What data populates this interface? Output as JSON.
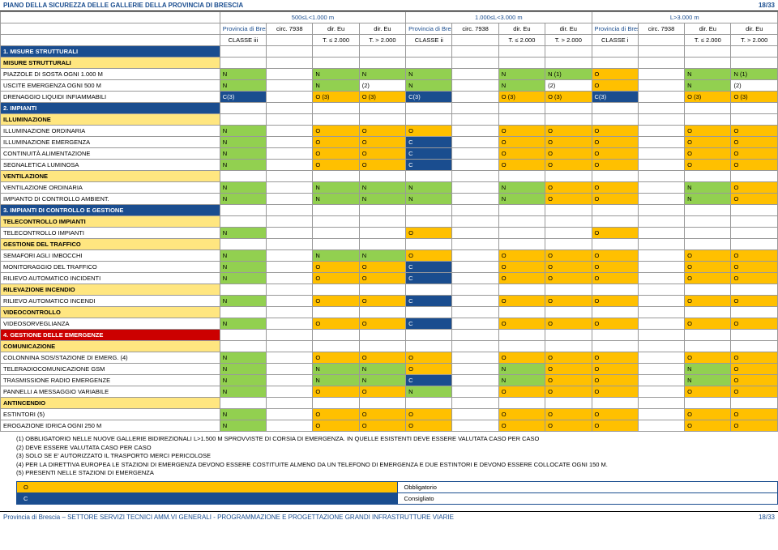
{
  "header": {
    "title": "PIANO DELLA SICUREZZA DELLE GALLERIE DELLA PROVINCIA DI BRESCIA",
    "page": "18/33"
  },
  "length_groups": [
    "500≤L<1.000 m",
    "1.000≤L<3.000 m",
    "L>3.000 m"
  ],
  "col_group_label": "Provincia di Brescia",
  "col_sub": [
    "circ. 7938",
    "dir. Eu",
    "dir. Eu"
  ],
  "classe_labels": [
    "CLASSE iii",
    "T. ≤ 2.000",
    "T. > 2.000",
    "CLASSE ii",
    "T. ≤ 2.000",
    "T. > 2.000",
    "CLASSE i",
    "T. ≤ 2.000",
    "T. > 2.000"
  ],
  "sections": [
    {
      "style": "blue",
      "label": "1. MISURE STRUTTURALI"
    },
    {
      "style": "yellow",
      "label": "MISURE STRUTTURALI"
    }
  ],
  "rows": [
    {
      "label": "PIAZZOLE DI SOSTA OGNI 1.000 M",
      "cells": [
        "N",
        "",
        "N",
        "N",
        "N",
        "",
        "N",
        "N (1)",
        "O",
        "",
        "N",
        "N (1)"
      ],
      "colors": [
        "g",
        "",
        "g",
        "g",
        "g",
        "",
        "g",
        "g",
        "o",
        "",
        "g",
        "g"
      ]
    },
    {
      "label": "USCITE EMERGENZA OGNI 500 M",
      "cells": [
        "N",
        "",
        "N",
        "(2)",
        "N",
        "",
        "N",
        "(2)",
        "O",
        "",
        "N",
        "(2)"
      ],
      "colors": [
        "g",
        "",
        "g",
        "",
        "g",
        "",
        "g",
        "",
        "o",
        "",
        "g",
        ""
      ]
    },
    {
      "label": "DRENAGGIO LIQUIDI INFIAMMABILI",
      "cells": [
        "C(3)",
        "",
        "O (3)",
        "O (3)",
        "C(3)",
        "",
        "O (3)",
        "O (3)",
        "C(3)",
        "",
        "O (3)",
        "O (3)"
      ],
      "colors": [
        "n",
        "",
        "o",
        "o",
        "n",
        "",
        "o",
        "o",
        "n",
        "",
        "o",
        "o"
      ]
    }
  ],
  "sections2": [
    {
      "style": "blue",
      "label": "2. IMPIANTI"
    },
    {
      "style": "yellow",
      "label": "ILLUMINAZIONE"
    }
  ],
  "rows2": [
    {
      "label": "ILLUMINAZIONE ORDINARIA",
      "cells": [
        "N",
        "",
        "O",
        "O",
        "O",
        "",
        "O",
        "O",
        "O",
        "",
        "O",
        "O"
      ],
      "colors": [
        "g",
        "",
        "o",
        "o",
        "o",
        "",
        "o",
        "o",
        "o",
        "",
        "o",
        "o"
      ]
    },
    {
      "label": "ILLUMINAZIONE EMERGENZA",
      "cells": [
        "N",
        "",
        "O",
        "O",
        "C",
        "",
        "O",
        "O",
        "O",
        "",
        "O",
        "O"
      ],
      "colors": [
        "g",
        "",
        "o",
        "o",
        "n",
        "",
        "o",
        "o",
        "o",
        "",
        "o",
        "o"
      ]
    },
    {
      "label": "CONTINUITÀ ALIMENTAZIONE",
      "cells": [
        "N",
        "",
        "O",
        "O",
        "C",
        "",
        "O",
        "O",
        "O",
        "",
        "O",
        "O"
      ],
      "colors": [
        "g",
        "",
        "o",
        "o",
        "n",
        "",
        "o",
        "o",
        "o",
        "",
        "o",
        "o"
      ]
    },
    {
      "label": "SEGNALETICA LUMINOSA",
      "cells": [
        "N",
        "",
        "O",
        "O",
        "C",
        "",
        "O",
        "O",
        "O",
        "",
        "O",
        "O"
      ],
      "colors": [
        "g",
        "",
        "o",
        "o",
        "n",
        "",
        "o",
        "o",
        "o",
        "",
        "o",
        "o"
      ]
    }
  ],
  "sections3": [
    {
      "style": "yellow",
      "label": "VENTILAZIONE"
    }
  ],
  "rows3": [
    {
      "label": "VENTILAZIONE ORDINARIA",
      "cells": [
        "N",
        "",
        "N",
        "N",
        "N",
        "",
        "N",
        "O",
        "O",
        "",
        "N",
        "O"
      ],
      "colors": [
        "g",
        "",
        "g",
        "g",
        "g",
        "",
        "g",
        "o",
        "o",
        "",
        "g",
        "o"
      ]
    },
    {
      "label": "IMPIANTO DI CONTROLLO AMBIENT.",
      "cells": [
        "N",
        "",
        "N",
        "N",
        "N",
        "",
        "N",
        "O",
        "O",
        "",
        "N",
        "O"
      ],
      "colors": [
        "g",
        "",
        "g",
        "g",
        "g",
        "",
        "g",
        "o",
        "o",
        "",
        "g",
        "o"
      ]
    }
  ],
  "sections4": [
    {
      "style": "blue",
      "label": "3. IMPIANTI DI CONTROLLO E GESTIONE"
    },
    {
      "style": "yellow",
      "label": "TELECONTROLLO IMPIANTI"
    }
  ],
  "rows4": [
    {
      "label": "TELECONTROLLO IMPIANTI",
      "cells": [
        "N",
        "",
        "",
        "",
        "O",
        "",
        "",
        "",
        "O",
        "",
        "",
        ""
      ],
      "colors": [
        "g",
        "",
        "",
        "",
        "o",
        "",
        "",
        "",
        "o",
        "",
        "",
        ""
      ]
    }
  ],
  "sections5": [
    {
      "style": "yellow",
      "label": "GESTIONE DEL TRAFFICO"
    }
  ],
  "rows5": [
    {
      "label": "SEMAFORI AGLI IMBOCCHI",
      "cells": [
        "N",
        "",
        "N",
        "N",
        "O",
        "",
        "O",
        "O",
        "O",
        "",
        "O",
        "O"
      ],
      "colors": [
        "g",
        "",
        "g",
        "g",
        "o",
        "",
        "o",
        "o",
        "o",
        "",
        "o",
        "o"
      ]
    },
    {
      "label": "MONITORAGGIO DEL TRAFFICO",
      "cells": [
        "N",
        "",
        "O",
        "O",
        "C",
        "",
        "O",
        "O",
        "O",
        "",
        "O",
        "O"
      ],
      "colors": [
        "g",
        "",
        "o",
        "o",
        "n",
        "",
        "o",
        "o",
        "o",
        "",
        "o",
        "o"
      ]
    },
    {
      "label": "RILIEVO AUTOMATICO INCIDENTI",
      "cells": [
        "N",
        "",
        "O",
        "O",
        "C",
        "",
        "O",
        "O",
        "O",
        "",
        "O",
        "O"
      ],
      "colors": [
        "g",
        "",
        "o",
        "o",
        "n",
        "",
        "o",
        "o",
        "o",
        "",
        "o",
        "o"
      ]
    }
  ],
  "sections6": [
    {
      "style": "yellow",
      "label": "RILEVAZIONE INCENDIO"
    }
  ],
  "rows6": [
    {
      "label": "RILIEVO AUTOMATICO INCENDI",
      "cells": [
        "N",
        "",
        "O",
        "O",
        "C",
        "",
        "O",
        "O",
        "O",
        "",
        "O",
        "O"
      ],
      "colors": [
        "g",
        "",
        "o",
        "o",
        "n",
        "",
        "o",
        "o",
        "o",
        "",
        "o",
        "o"
      ]
    }
  ],
  "sections7": [
    {
      "style": "yellow",
      "label": "VIDEOCONTROLLO"
    }
  ],
  "rows7": [
    {
      "label": "VIDEOSORVEGLIANZA",
      "cells": [
        "N",
        "",
        "O",
        "O",
        "C",
        "",
        "O",
        "O",
        "O",
        "",
        "O",
        "O"
      ],
      "colors": [
        "g",
        "",
        "o",
        "o",
        "n",
        "",
        "o",
        "o",
        "o",
        "",
        "o",
        "o"
      ]
    }
  ],
  "sections8": [
    {
      "style": "red",
      "label": "4. GESTIONE DELLE EMERGENZE"
    },
    {
      "style": "yellow",
      "label": "COMUNICAZIONE"
    }
  ],
  "rows8": [
    {
      "label": "COLONNINA SOS/STAZIONE DI EMERG. (4)",
      "cells": [
        "N",
        "",
        "O",
        "O",
        "O",
        "",
        "O",
        "O",
        "O",
        "",
        "O",
        "O"
      ],
      "colors": [
        "g",
        "",
        "o",
        "o",
        "o",
        "",
        "o",
        "o",
        "o",
        "",
        "o",
        "o"
      ]
    },
    {
      "label": "TELERADIOCOMUNICAZIONE GSM",
      "cells": [
        "N",
        "",
        "N",
        "N",
        "O",
        "",
        "N",
        "O",
        "O",
        "",
        "N",
        "O"
      ],
      "colors": [
        "g",
        "",
        "g",
        "g",
        "o",
        "",
        "g",
        "o",
        "o",
        "",
        "g",
        "o"
      ]
    },
    {
      "label": "TRASMISSIONE RADIO EMERGENZE",
      "cells": [
        "N",
        "",
        "N",
        "N",
        "C",
        "",
        "N",
        "O",
        "O",
        "",
        "N",
        "O"
      ],
      "colors": [
        "g",
        "",
        "g",
        "g",
        "n",
        "",
        "g",
        "o",
        "o",
        "",
        "g",
        "o"
      ]
    },
    {
      "label": "PANNELLI A MESSAGGIO VARIABILE",
      "cells": [
        "N",
        "",
        "O",
        "O",
        "N",
        "",
        "O",
        "O",
        "O",
        "",
        "O",
        "O"
      ],
      "colors": [
        "g",
        "",
        "o",
        "o",
        "g",
        "",
        "o",
        "o",
        "o",
        "",
        "o",
        "o"
      ]
    }
  ],
  "sections9": [
    {
      "style": "yellow",
      "label": "ANTINCENDIO"
    }
  ],
  "rows9": [
    {
      "label": "ESTINTORI (5)",
      "cells": [
        "N",
        "",
        "O",
        "O",
        "O",
        "",
        "O",
        "O",
        "O",
        "",
        "O",
        "O"
      ],
      "colors": [
        "g",
        "",
        "o",
        "o",
        "o",
        "",
        "o",
        "o",
        "o",
        "",
        "o",
        "o"
      ]
    },
    {
      "label": "EROGAZIONE IDRICA OGNI 250 M",
      "cells": [
        "N",
        "",
        "O",
        "O",
        "O",
        "",
        "O",
        "O",
        "O",
        "",
        "O",
        "O"
      ],
      "colors": [
        "g",
        "",
        "o",
        "o",
        "o",
        "",
        "o",
        "o",
        "o",
        "",
        "o",
        "o"
      ]
    }
  ],
  "notes": [
    "(1) OBBLIGATORIO NELLE NUOVE GALLERIE BIDIREZIONALI L>1.500 M SPROVVISTE DI CORSIA DI EMERGENZA. IN QUELLE ESISTENTI DEVE ESSERE VALUTATA CASO PER CASO",
    "(2) DEVE ESSERE VALUTATA CASO PER CASO",
    "(3) SOLO SE E' AUTORIZZATO IL TRASPORTO MERCI PERICOLOSE",
    "(4) PER LA DIRETTIVA EUROPEA LE STAZIONI DI EMERGENZA DEVONO ESSERE COSTITUITE ALMENO DA UN TELEFONO DI EMERGENZA E DUE ESTINTORI E DEVONO ESSERE COLLOCATE OGNI 150 M.",
    "(5) PRESENTI NELLE STAZIONI DI EMERGENZA"
  ],
  "legend": [
    {
      "code": "O",
      "text": "Obbligatorio",
      "color": "o"
    },
    {
      "code": "C",
      "text": "Consigliato",
      "color": "n"
    }
  ],
  "footer": {
    "left": "Provincia di Brescia – SETTORE SERVIZI TECNICI AMM.VI GENERALI - PROGRAMMAZIONE E PROGETTAZIONE GRANDI INFRASTRUTTURE VIARIE",
    "right": "18/33"
  }
}
